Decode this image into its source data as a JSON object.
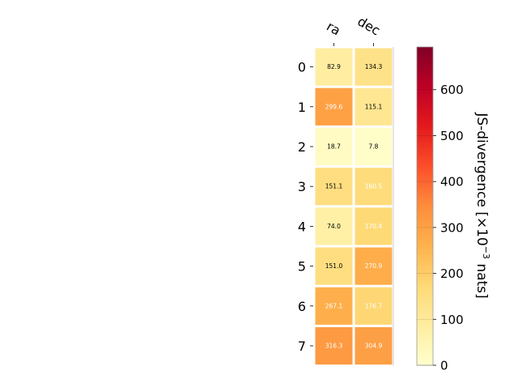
{
  "chart_data": {
    "type": "heatmap",
    "columns": [
      "ra",
      "dec"
    ],
    "rows": [
      "0",
      "1",
      "2",
      "3",
      "4",
      "5",
      "6",
      "7"
    ],
    "values": [
      [
        82.9,
        134.3
      ],
      [
        299.6,
        115.1
      ],
      [
        18.7,
        7.8
      ],
      [
        151.1,
        160.5
      ],
      [
        74.0,
        170.4
      ],
      [
        151.0,
        270.9
      ],
      [
        267.1,
        176.7
      ],
      [
        316.3,
        304.9
      ]
    ],
    "cell_labels": [
      [
        "82.9",
        "134.3"
      ],
      [
        "299.6",
        "115.1"
      ],
      [
        "18.7",
        "7.8"
      ],
      [
        "151.1",
        "160.5"
      ],
      [
        "74.0",
        "170.4"
      ],
      [
        "151.0",
        "270.9"
      ],
      [
        "267.1",
        "176.7"
      ],
      [
        "316.3",
        "304.9"
      ]
    ],
    "colorbar": {
      "label_main": "JS-divergence [×10",
      "label_exp": "−3",
      "label_tail": " nats]",
      "range": [
        0,
        693
      ],
      "ticks": [
        0,
        100,
        200,
        300,
        400,
        500,
        600
      ],
      "colormap": "YlOrRd"
    },
    "grid": false,
    "x_axis_position": "top"
  }
}
